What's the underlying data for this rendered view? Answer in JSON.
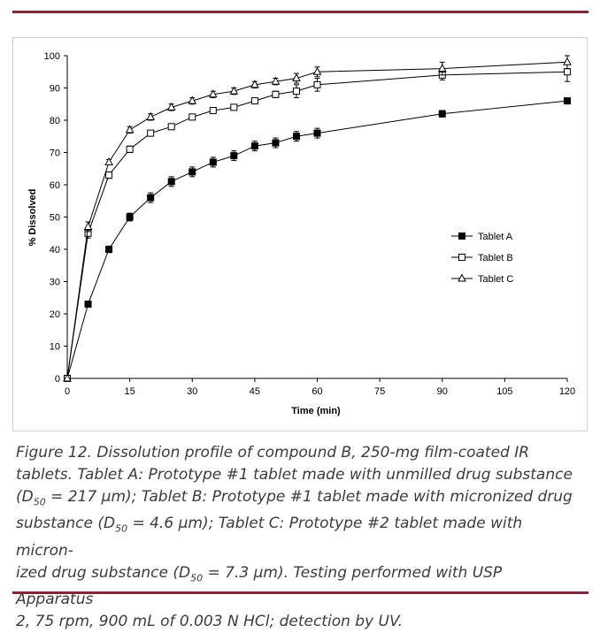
{
  "chart_data": {
    "type": "line",
    "xlabel": "Time (min)",
    "ylabel": "% Dissolved",
    "xlim": [
      0,
      120
    ],
    "ylim": [
      0,
      100
    ],
    "xticks": [
      0,
      15,
      30,
      45,
      60,
      75,
      90,
      105,
      120
    ],
    "yticks": [
      0,
      10,
      20,
      30,
      40,
      50,
      60,
      70,
      80,
      90,
      100
    ],
    "legend_position": "right",
    "series": [
      {
        "name": "Tablet A",
        "marker": "filled-square",
        "x": [
          0,
          5,
          10,
          15,
          20,
          25,
          30,
          35,
          40,
          45,
          50,
          55,
          60,
          90,
          120
        ],
        "y": [
          0,
          23,
          40,
          50,
          56,
          61,
          64,
          67,
          69,
          72,
          73,
          75,
          76,
          82,
          86
        ],
        "err": [
          0,
          0.5,
          1,
          1.2,
          1.5,
          1.5,
          1.5,
          1.5,
          1.5,
          1.5,
          1.5,
          1.5,
          1.5,
          1,
          0.5
        ]
      },
      {
        "name": "Tablet B",
        "marker": "open-square",
        "x": [
          0,
          5,
          10,
          15,
          20,
          25,
          30,
          35,
          40,
          45,
          50,
          55,
          60,
          90,
          120
        ],
        "y": [
          0,
          45,
          63,
          71,
          76,
          78,
          81,
          83,
          84,
          86,
          88,
          89,
          91,
          94,
          95
        ],
        "err": [
          0,
          1.5,
          1,
          1,
          0.5,
          0.5,
          0.5,
          0.5,
          0.5,
          0.5,
          1,
          2,
          2,
          1.5,
          3
        ]
      },
      {
        "name": "Tablet C",
        "marker": "open-triangle",
        "x": [
          0,
          5,
          10,
          15,
          20,
          25,
          30,
          35,
          40,
          45,
          50,
          55,
          60,
          90,
          120
        ],
        "y": [
          0,
          47,
          67,
          77,
          81,
          84,
          86,
          88,
          89,
          91,
          92,
          93,
          95,
          96,
          98
        ],
        "err": [
          0,
          1.5,
          0.8,
          1,
          1,
          1,
          1,
          1,
          1,
          1,
          1,
          1.5,
          1.5,
          2,
          2
        ]
      }
    ]
  },
  "caption": {
    "line1": "Figure 12. Dissolution profile of compound B, 250-mg film-coated IR",
    "line2": "tablets. Tablet A: Prototype #1 tablet made with unmilled drug substance",
    "line3a": "(D",
    "sub1": "50",
    "line3b": " = 217 µm); Tablet B: Prototype #1 tablet made with micronized drug",
    "line4a": "substance (D",
    "sub2": "50",
    "line4b": " = 4.6 µm); Tablet C: Prototype #2 tablet made with micron-",
    "line5a": "ized drug substance (D",
    "sub3": "50",
    "line5b": " = 7.3 µm). Testing performed with USP Apparatus",
    "line6": "2, 75 rpm, 900 mL of 0.003 N HCl; detection by UV."
  }
}
